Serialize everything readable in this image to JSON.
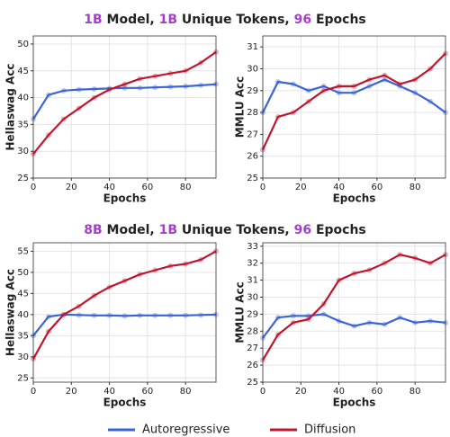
{
  "figure": {
    "titles": [
      [
        {
          "text": "1B",
          "color": "#a43fc8"
        },
        {
          "text": " Model, ",
          "color": "#222222"
        },
        {
          "text": "1B",
          "color": "#a43fc8"
        },
        {
          "text": " Unique Tokens, ",
          "color": "#222222"
        },
        {
          "text": "96",
          "color": "#a43fc8"
        },
        {
          "text": " Epochs",
          "color": "#222222"
        }
      ],
      [
        {
          "text": "8B",
          "color": "#a43fc8"
        },
        {
          "text": " Model, ",
          "color": "#222222"
        },
        {
          "text": "1B",
          "color": "#a43fc8"
        },
        {
          "text": " Unique Tokens, ",
          "color": "#222222"
        },
        {
          "text": "96",
          "color": "#a43fc8"
        },
        {
          "text": " Epochs",
          "color": "#222222"
        }
      ]
    ]
  },
  "chart_data": [
    {
      "type": "line",
      "xlabel": "Epochs",
      "ylabel": "Hellaswag Acc",
      "grid": true,
      "x": [
        0,
        8,
        16,
        24,
        32,
        40,
        48,
        56,
        64,
        72,
        80,
        88,
        96
      ],
      "xlim": [
        0,
        96
      ],
      "xticks": [
        0,
        20,
        40,
        60,
        80
      ],
      "ylim": [
        25,
        51.5
      ],
      "yticks": [
        25,
        30,
        35,
        40,
        45,
        50
      ],
      "series": [
        {
          "name": "Autoregressive",
          "color": "#3a64d8",
          "values": [
            36,
            40.5,
            41.3,
            41.5,
            41.6,
            41.7,
            41.8,
            41.8,
            41.9,
            42,
            42.1,
            42.3,
            42.5
          ]
        },
        {
          "name": "Diffusion",
          "color": "#c0152f",
          "values": [
            29.5,
            33,
            36,
            38,
            40,
            41.5,
            42.5,
            43.5,
            44,
            44.5,
            45,
            46.5,
            48.5
          ]
        }
      ]
    },
    {
      "type": "line",
      "xlabel": "Epochs",
      "ylabel": "MMLU Acc",
      "grid": true,
      "x": [
        0,
        8,
        16,
        24,
        32,
        40,
        48,
        56,
        64,
        72,
        80,
        88,
        96
      ],
      "xlim": [
        0,
        96
      ],
      "xticks": [
        0,
        20,
        40,
        60,
        80
      ],
      "ylim": [
        25,
        31.5
      ],
      "yticks": [
        25,
        26,
        27,
        28,
        29,
        30,
        31
      ],
      "series": [
        {
          "name": "Autoregressive",
          "color": "#3a64d8",
          "values": [
            28,
            29.4,
            29.3,
            29,
            29.2,
            28.9,
            28.9,
            29.2,
            29.5,
            29.2,
            28.9,
            28.5,
            28
          ]
        },
        {
          "name": "Diffusion",
          "color": "#c0152f",
          "values": [
            26.3,
            27.8,
            28,
            28.5,
            29,
            29.2,
            29.2,
            29.5,
            29.7,
            29.3,
            29.5,
            30,
            30.7
          ]
        }
      ]
    },
    {
      "type": "line",
      "xlabel": "Epochs",
      "ylabel": "Hellaswag Acc",
      "grid": true,
      "x": [
        0,
        8,
        16,
        24,
        32,
        40,
        48,
        56,
        64,
        72,
        80,
        88,
        96
      ],
      "xlim": [
        0,
        96
      ],
      "xticks": [
        0,
        20,
        40,
        60,
        80
      ],
      "ylim": [
        24,
        57
      ],
      "yticks": [
        25,
        30,
        35,
        40,
        45,
        50,
        55
      ],
      "series": [
        {
          "name": "Autoregressive",
          "color": "#3a64d8",
          "values": [
            35,
            39.5,
            40,
            39.9,
            39.8,
            39.8,
            39.7,
            39.8,
            39.8,
            39.8,
            39.8,
            39.9,
            40
          ]
        },
        {
          "name": "Diffusion",
          "color": "#c0152f",
          "values": [
            29.5,
            36,
            40,
            42,
            44.5,
            46.5,
            48,
            49.5,
            50.5,
            51.5,
            52,
            53,
            55
          ]
        }
      ]
    },
    {
      "type": "line",
      "xlabel": "Epochs",
      "ylabel": "MMLU Acc",
      "grid": true,
      "x": [
        0,
        8,
        16,
        24,
        32,
        40,
        48,
        56,
        64,
        72,
        80,
        88,
        96
      ],
      "xlim": [
        0,
        96
      ],
      "xticks": [
        0,
        20,
        40,
        60,
        80
      ],
      "ylim": [
        25,
        33.2
      ],
      "yticks": [
        25,
        26,
        27,
        28,
        29,
        30,
        31,
        32,
        33
      ],
      "series": [
        {
          "name": "Autoregressive",
          "color": "#3a64d8",
          "values": [
            27.6,
            28.8,
            28.9,
            28.9,
            29,
            28.6,
            28.3,
            28.5,
            28.4,
            28.8,
            28.5,
            28.6,
            28.5
          ]
        },
        {
          "name": "Diffusion",
          "color": "#c0152f",
          "values": [
            26.3,
            27.8,
            28.5,
            28.7,
            29.6,
            31,
            31.4,
            31.6,
            32,
            32.5,
            32.3,
            32,
            32.5
          ]
        }
      ]
    }
  ]
}
